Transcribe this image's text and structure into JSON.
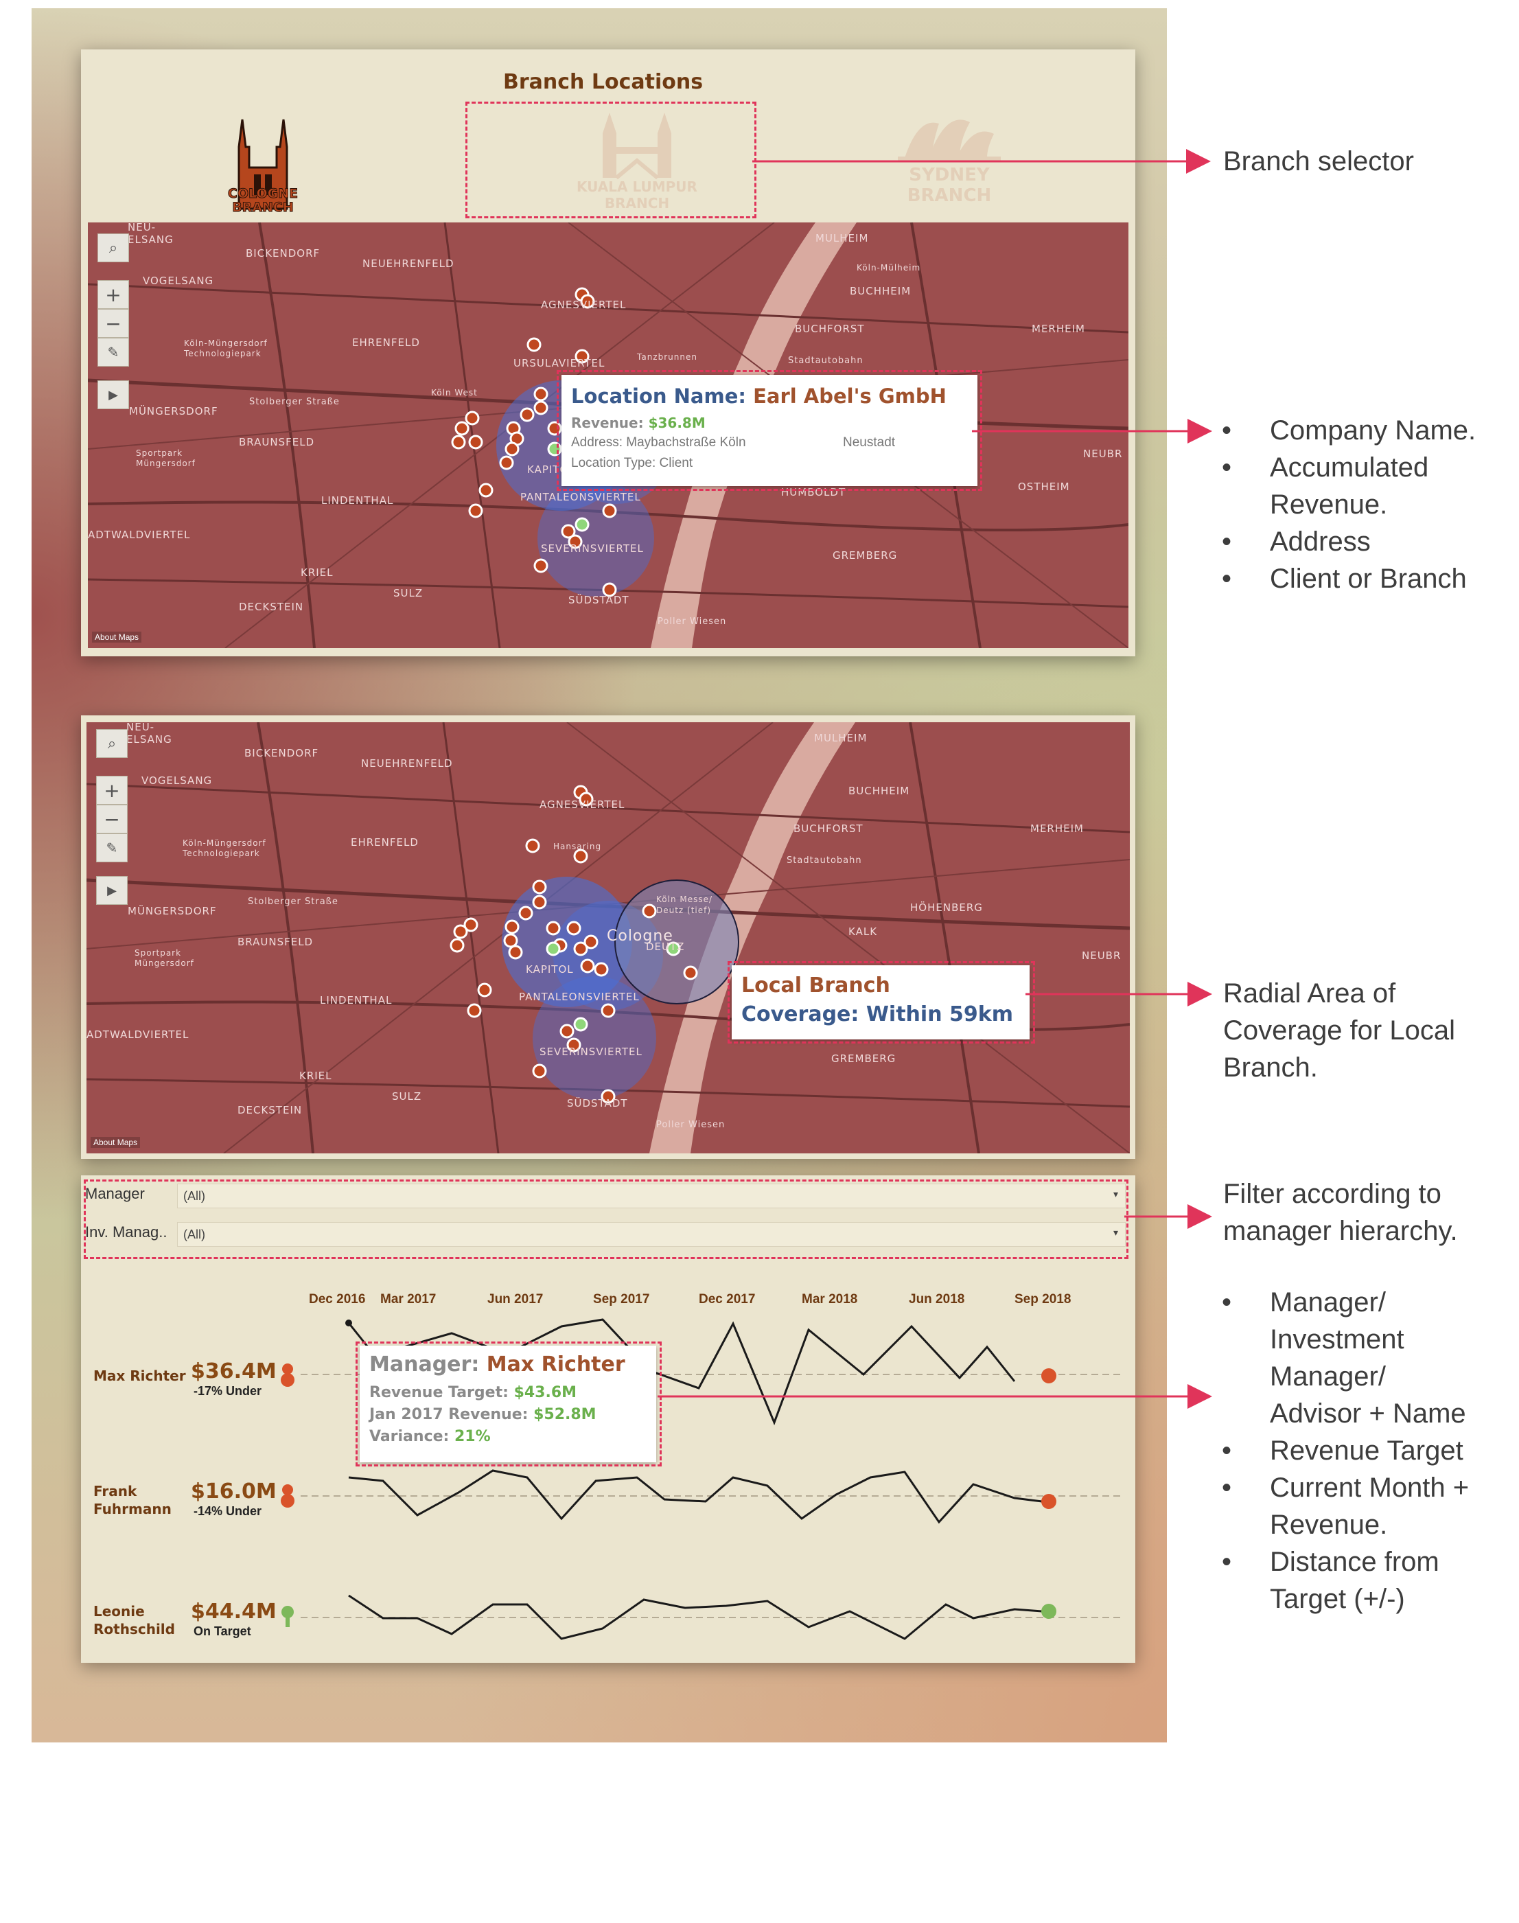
{
  "dashboard": {
    "title": "Branch Locations",
    "branches": [
      {
        "label_line1": "COLOGNE",
        "label_line2": "BRANCH",
        "icon": "cologne-cathedral-icon"
      },
      {
        "label_line1": "KUALA LUMPUR",
        "label_line2": "BRANCH",
        "icon": "petronas-towers-icon"
      },
      {
        "label_line1": "SYDNEY",
        "label_line2": "BRANCH",
        "icon": "sydney-opera-house-icon"
      }
    ],
    "colors": {
      "map": "#9c4e4e",
      "client_dot": "#c0471f",
      "branch_dot": "#8fd67a",
      "coverage": "#4a6fd6",
      "annotation": "#e0345a",
      "accent_brown": "#a0522d",
      "accent_blue": "#3a5a8c",
      "accent_green": "#6ab04c"
    }
  },
  "map": {
    "labels": [
      "NEU-",
      "ELSANG",
      "BICKENDORF",
      "NEUEHRENFELD",
      "MULHEIM",
      "VOGELSANG",
      "BUCHHEIM",
      "AGNESVIERTEL",
      "BUCHFORST",
      "MERHEIM",
      "EHRENFELD",
      "Köln-Müngersdorf",
      "Technologiepark",
      "URSULAVIERTEL",
      "Stadtautobahn",
      "MÜNGERSDORF",
      "Stolberger Straße",
      "BRAUNSFELD",
      "Sportpark",
      "Müngersdorf",
      "LINDENTHAL",
      "PANTALEONSVIERTEL",
      "SEVERINSVIERTEL",
      "HUMBOLDT",
      "GREMBERG",
      "OSTHEIM",
      "NEUBR",
      "KRIEL",
      "SULZ",
      "DECKSTEIN",
      "SÜDSTADT",
      "Poller Wiesen",
      "ADTWALDVIERTEL",
      "KAPITOL",
      "Köln-Mülheim",
      "Tanzbrunnen",
      "HÖHENBERG",
      "KALK",
      "Köln West",
      "Köln Messe/",
      "Deutz (tief)",
      "DEUTZ",
      "Cologne",
      "Hansaring"
    ],
    "about_label": "About Maps",
    "controls": {
      "search": "search-icon",
      "zoom_in": "+",
      "zoom_out": "−",
      "lasso": "lasso-select-icon",
      "play": "play-icon"
    }
  },
  "tooltip_location": {
    "name_label": "Location Name:",
    "name_value": "Earl Abel's GmbH",
    "revenue_label": "Revenue:",
    "revenue_value": "$36.8M",
    "address_label": "Address:",
    "address_value": "Maybachstraße Köln",
    "district": "Neustadt",
    "type_label": "Location Type:",
    "type_value": "Client"
  },
  "tooltip_branch": {
    "line1": "Local Branch",
    "line2_label": "Coverage:",
    "line2_value": "Within 59km"
  },
  "filters": [
    {
      "label": "Manager",
      "value": "(All)"
    },
    {
      "label": "Inv. Manag..",
      "value": "(All)"
    }
  ],
  "timeline": {
    "months": [
      "Dec 2016",
      "Mar 2017",
      "Jun 2017",
      "Sep 2017",
      "Dec 2017",
      "Mar 2018",
      "Jun 2018",
      "Sep 2018"
    ]
  },
  "managers": [
    {
      "name_line1": "Max Richter",
      "name_line2": "",
      "amount": "$36.4M",
      "status": "-17% Under",
      "state": "under"
    },
    {
      "name_line1": "Frank",
      "name_line2": "Fuhrmann",
      "amount": "$16.0M",
      "status": "-14% Under",
      "state": "under"
    },
    {
      "name_line1": "Leonie",
      "name_line2": "Rothschild",
      "amount": "$44.4M",
      "status": "On Target",
      "state": "on"
    }
  ],
  "tooltip_manager": {
    "name_label": "Manager:",
    "name_value": "Max Richter",
    "target_label": "Revenue Target:",
    "target_value": "$43.6M",
    "month_label": "Jan 2017 Revenue:",
    "month_value": "$52.8M",
    "variance_label": "Variance:",
    "variance_value": "21%"
  },
  "annotations": {
    "branch_selector": "Branch selector",
    "tooltip_list": [
      "Company Name.",
      "Accumulated",
      "Revenue.",
      "Address",
      "Client or Branch"
    ],
    "radial_lines": [
      "Radial Area of",
      "Coverage for Local",
      "Branch."
    ],
    "filter_lines": [
      "Filter according to",
      "manager hierarchy."
    ],
    "manager_list": [
      "Manager/",
      "Investment",
      "Manager/",
      "Advisor + Name",
      "Revenue Target",
      "Current Month +",
      "Revenue.",
      "Distance from",
      "Target (+/-)"
    ],
    "bullet": "•"
  }
}
